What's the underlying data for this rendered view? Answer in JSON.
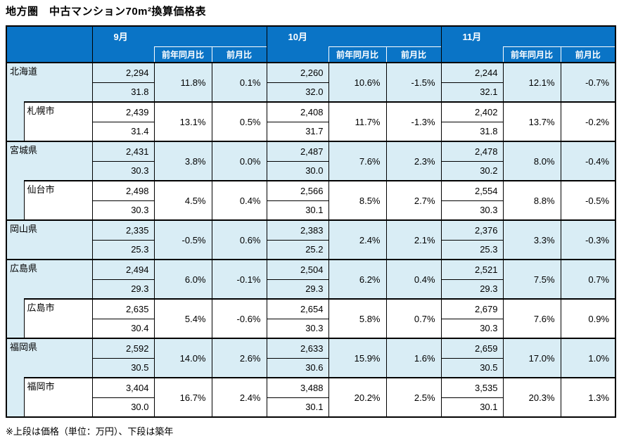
{
  "title": "地方圏　中古マンション70m²換算価格表",
  "footnote": "※上段は価格（単位：万円）、下段は築年",
  "colors": {
    "header_blue": "#0a74c6",
    "light_blue": "#d9edf5",
    "border_color": "#000000"
  },
  "table": {
    "months": [
      "9月",
      "10月",
      "11月"
    ],
    "sub_headers": {
      "yoy": "前年同月比",
      "mom": "前月比"
    },
    "row_format": {
      "upper": "価格（万円）",
      "lower": "築年"
    },
    "rows": [
      {
        "label": "北海道",
        "type": "prefecture",
        "months": [
          {
            "price": "2,294",
            "age": "31.8",
            "yoy": "11.8%",
            "mom": "0.1%"
          },
          {
            "price": "2,260",
            "age": "32.0",
            "yoy": "10.6%",
            "mom": "-1.5%"
          },
          {
            "price": "2,244",
            "age": "32.1",
            "yoy": "12.1%",
            "mom": "-0.7%"
          }
        ]
      },
      {
        "label": "札幌市",
        "type": "city",
        "months": [
          {
            "price": "2,439",
            "age": "31.4",
            "yoy": "13.1%",
            "mom": "0.5%"
          },
          {
            "price": "2,408",
            "age": "31.7",
            "yoy": "11.7%",
            "mom": "-1.3%"
          },
          {
            "price": "2,402",
            "age": "31.8",
            "yoy": "13.7%",
            "mom": "-0.2%"
          }
        ]
      },
      {
        "label": "宮城県",
        "type": "prefecture",
        "months": [
          {
            "price": "2,431",
            "age": "30.3",
            "yoy": "3.8%",
            "mom": "0.0%"
          },
          {
            "price": "2,487",
            "age": "30.0",
            "yoy": "7.6%",
            "mom": "2.3%"
          },
          {
            "price": "2,478",
            "age": "30.2",
            "yoy": "8.0%",
            "mom": "-0.4%"
          }
        ]
      },
      {
        "label": "仙台市",
        "type": "city",
        "months": [
          {
            "price": "2,498",
            "age": "30.3",
            "yoy": "4.5%",
            "mom": "0.4%"
          },
          {
            "price": "2,566",
            "age": "30.1",
            "yoy": "8.5%",
            "mom": "2.7%"
          },
          {
            "price": "2,554",
            "age": "30.3",
            "yoy": "8.8%",
            "mom": "-0.5%"
          }
        ]
      },
      {
        "label": "岡山県",
        "type": "prefecture",
        "months": [
          {
            "price": "2,335",
            "age": "25.3",
            "yoy": "-0.5%",
            "mom": "0.6%"
          },
          {
            "price": "2,383",
            "age": "25.2",
            "yoy": "2.4%",
            "mom": "2.1%"
          },
          {
            "price": "2,376",
            "age": "25.3",
            "yoy": "3.3%",
            "mom": "-0.3%"
          }
        ]
      },
      {
        "label": "広島県",
        "type": "prefecture",
        "months": [
          {
            "price": "2,494",
            "age": "29.3",
            "yoy": "6.0%",
            "mom": "-0.1%"
          },
          {
            "price": "2,504",
            "age": "29.3",
            "yoy": "6.2%",
            "mom": "0.4%"
          },
          {
            "price": "2,521",
            "age": "29.3",
            "yoy": "7.5%",
            "mom": "0.7%"
          }
        ]
      },
      {
        "label": "広島市",
        "type": "city",
        "months": [
          {
            "price": "2,635",
            "age": "30.4",
            "yoy": "5.4%",
            "mom": "-0.6%"
          },
          {
            "price": "2,654",
            "age": "30.3",
            "yoy": "5.8%",
            "mom": "0.7%"
          },
          {
            "price": "2,679",
            "age": "30.3",
            "yoy": "7.6%",
            "mom": "0.9%"
          }
        ]
      },
      {
        "label": "福岡県",
        "type": "prefecture",
        "months": [
          {
            "price": "2,592",
            "age": "30.5",
            "yoy": "14.0%",
            "mom": "2.6%"
          },
          {
            "price": "2,633",
            "age": "30.6",
            "yoy": "15.9%",
            "mom": "1.6%"
          },
          {
            "price": "2,659",
            "age": "30.5",
            "yoy": "17.0%",
            "mom": "1.0%"
          }
        ]
      },
      {
        "label": "福岡市",
        "type": "city",
        "months": [
          {
            "price": "3,404",
            "age": "30.0",
            "yoy": "16.7%",
            "mom": "2.4%"
          },
          {
            "price": "3,488",
            "age": "30.1",
            "yoy": "20.2%",
            "mom": "2.5%"
          },
          {
            "price": "3,535",
            "age": "30.1",
            "yoy": "20.3%",
            "mom": "1.3%"
          }
        ]
      }
    ]
  }
}
